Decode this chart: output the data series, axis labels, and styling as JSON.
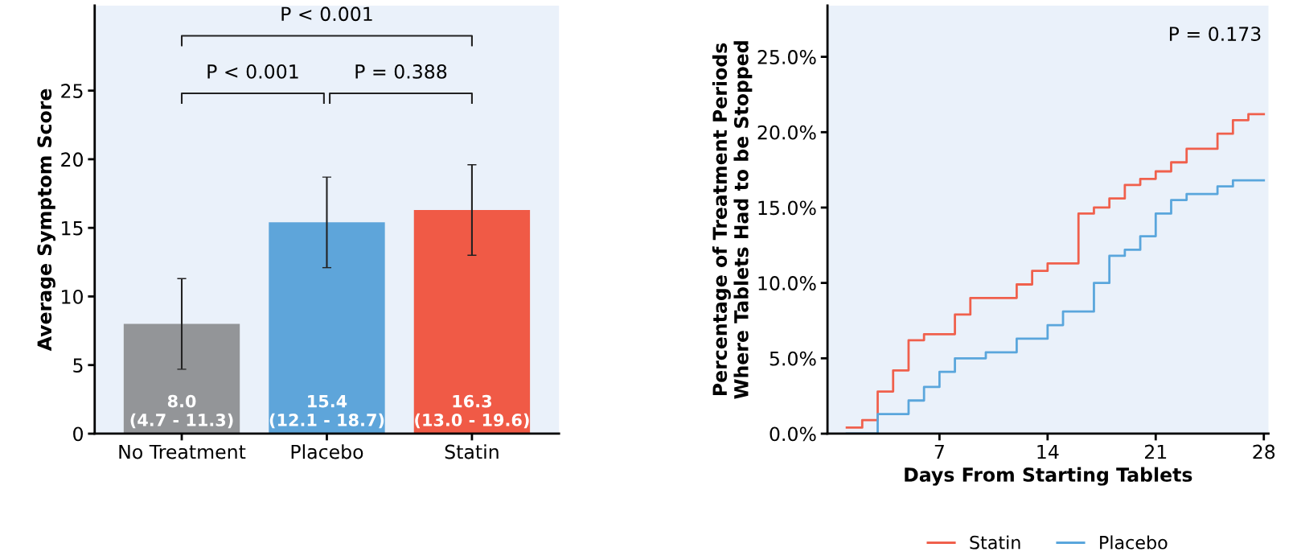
{
  "chart_data": [
    {
      "type": "bar",
      "ylabel": "Average Symptom Score",
      "categories": [
        "No Treatment",
        "Placebo",
        "Statin"
      ],
      "values": [
        8.0,
        15.4,
        16.3
      ],
      "colors": [
        "#939598",
        "#5ea5da",
        "#f05a46"
      ],
      "errors": [
        [
          4.7,
          11.3
        ],
        [
          12.1,
          18.7
        ],
        [
          13.0,
          19.6
        ]
      ],
      "value_labels": [
        "8.0\n(4.7 - 11.3)",
        "15.4\n(12.1 - 18.7)",
        "16.3\n(13.0 - 19.6)"
      ],
      "ylim": [
        0,
        31.2
      ],
      "yticks": [
        0,
        5,
        10,
        15,
        20,
        25
      ],
      "annotations": [
        "P < 0.001",
        "P < 0.001",
        "P = 0.388"
      ],
      "grid": false,
      "legend": false
    },
    {
      "type": "step",
      "xlabel": "Days From Starting Tablets",
      "ylabel": "Percentage of Treatment Periods\nWhere Tablets Had to be Stopped",
      "series": [
        {
          "name": "Statin",
          "color": "#f0604c",
          "x": [
            1,
            2,
            3,
            4,
            5,
            6,
            8,
            9,
            12,
            13,
            14,
            16,
            17,
            18,
            19,
            20,
            21,
            22,
            23,
            25,
            26,
            27,
            28
          ],
          "values": [
            0.4,
            0.9,
            2.8,
            4.2,
            6.2,
            6.6,
            7.9,
            9.0,
            9.9,
            10.8,
            11.3,
            14.6,
            15.0,
            15.6,
            16.5,
            16.9,
            17.4,
            18.0,
            18.9,
            19.9,
            20.8,
            21.2,
            21.2
          ]
        },
        {
          "name": "Placebo",
          "color": "#5aa6dc",
          "x": [
            1,
            3,
            5,
            6,
            7,
            8,
            10,
            12,
            14,
            15,
            17,
            18,
            19,
            20,
            21,
            22,
            23,
            25,
            26,
            28
          ],
          "values": [
            0,
            1.3,
            2.2,
            3.1,
            4.1,
            5.0,
            5.4,
            6.3,
            7.2,
            8.1,
            10.0,
            11.8,
            12.2,
            13.1,
            14.6,
            15.5,
            15.9,
            16.4,
            16.8,
            16.8
          ]
        }
      ],
      "xlim": [
        -0.25,
        28.3
      ],
      "xticks": [
        7,
        14,
        21,
        28
      ],
      "ylim": [
        0,
        28.4
      ],
      "yticks": [
        {
          "value": 0,
          "label": "0.0%"
        },
        {
          "value": 5,
          "label": "5.0%"
        },
        {
          "value": 10,
          "label": "10.0%"
        },
        {
          "value": 15,
          "label": "15.0%"
        },
        {
          "value": 20,
          "label": "20.0%"
        },
        {
          "value": 25,
          "label": "25.0%"
        }
      ],
      "annotations": [
        "P = 0.173"
      ],
      "legend": "bottom",
      "grid": false,
      "line_style": "solid",
      "marker": "none"
    }
  ]
}
